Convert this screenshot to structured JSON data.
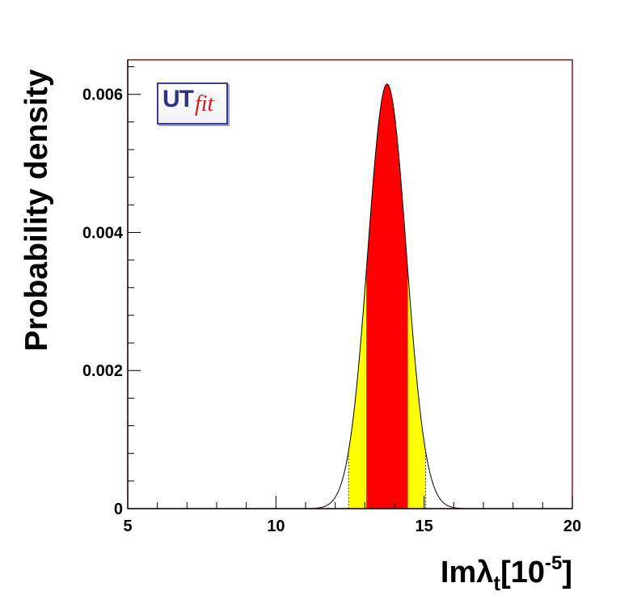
{
  "chart_data": {
    "type": "area",
    "title": "",
    "xlabel": "Imλ",
    "xlabel_sub": "t",
    "xlabel_unit_open": "[10",
    "xlabel_unit_exp": "-5",
    "xlabel_unit_close": "]",
    "ylabel": "Probability density",
    "xlim": [
      5,
      20
    ],
    "ylim": [
      0,
      0.0065
    ],
    "x_ticks": [
      5,
      10,
      15,
      20
    ],
    "x_tick_labels": [
      "5",
      "10",
      "15",
      "20"
    ],
    "y_ticks": [
      0,
      0.002,
      0.004,
      0.006
    ],
    "y_tick_labels": [
      "0",
      "0.002",
      "0.004",
      "0.006"
    ],
    "grid": false,
    "distribution": {
      "shape": "gaussian",
      "mean": 13.75,
      "sigma": 0.65,
      "peak": 0.00615
    },
    "intervals": {
      "p68": [
        13.05,
        14.45
      ],
      "p95": [
        12.45,
        15.05
      ]
    },
    "colors": {
      "p68": "#ff0000",
      "p95": "#ffff00",
      "curve": "#000000",
      "frame": "#7a1f1f"
    }
  },
  "logo": {
    "main": "UT",
    "accent": "fit"
  }
}
